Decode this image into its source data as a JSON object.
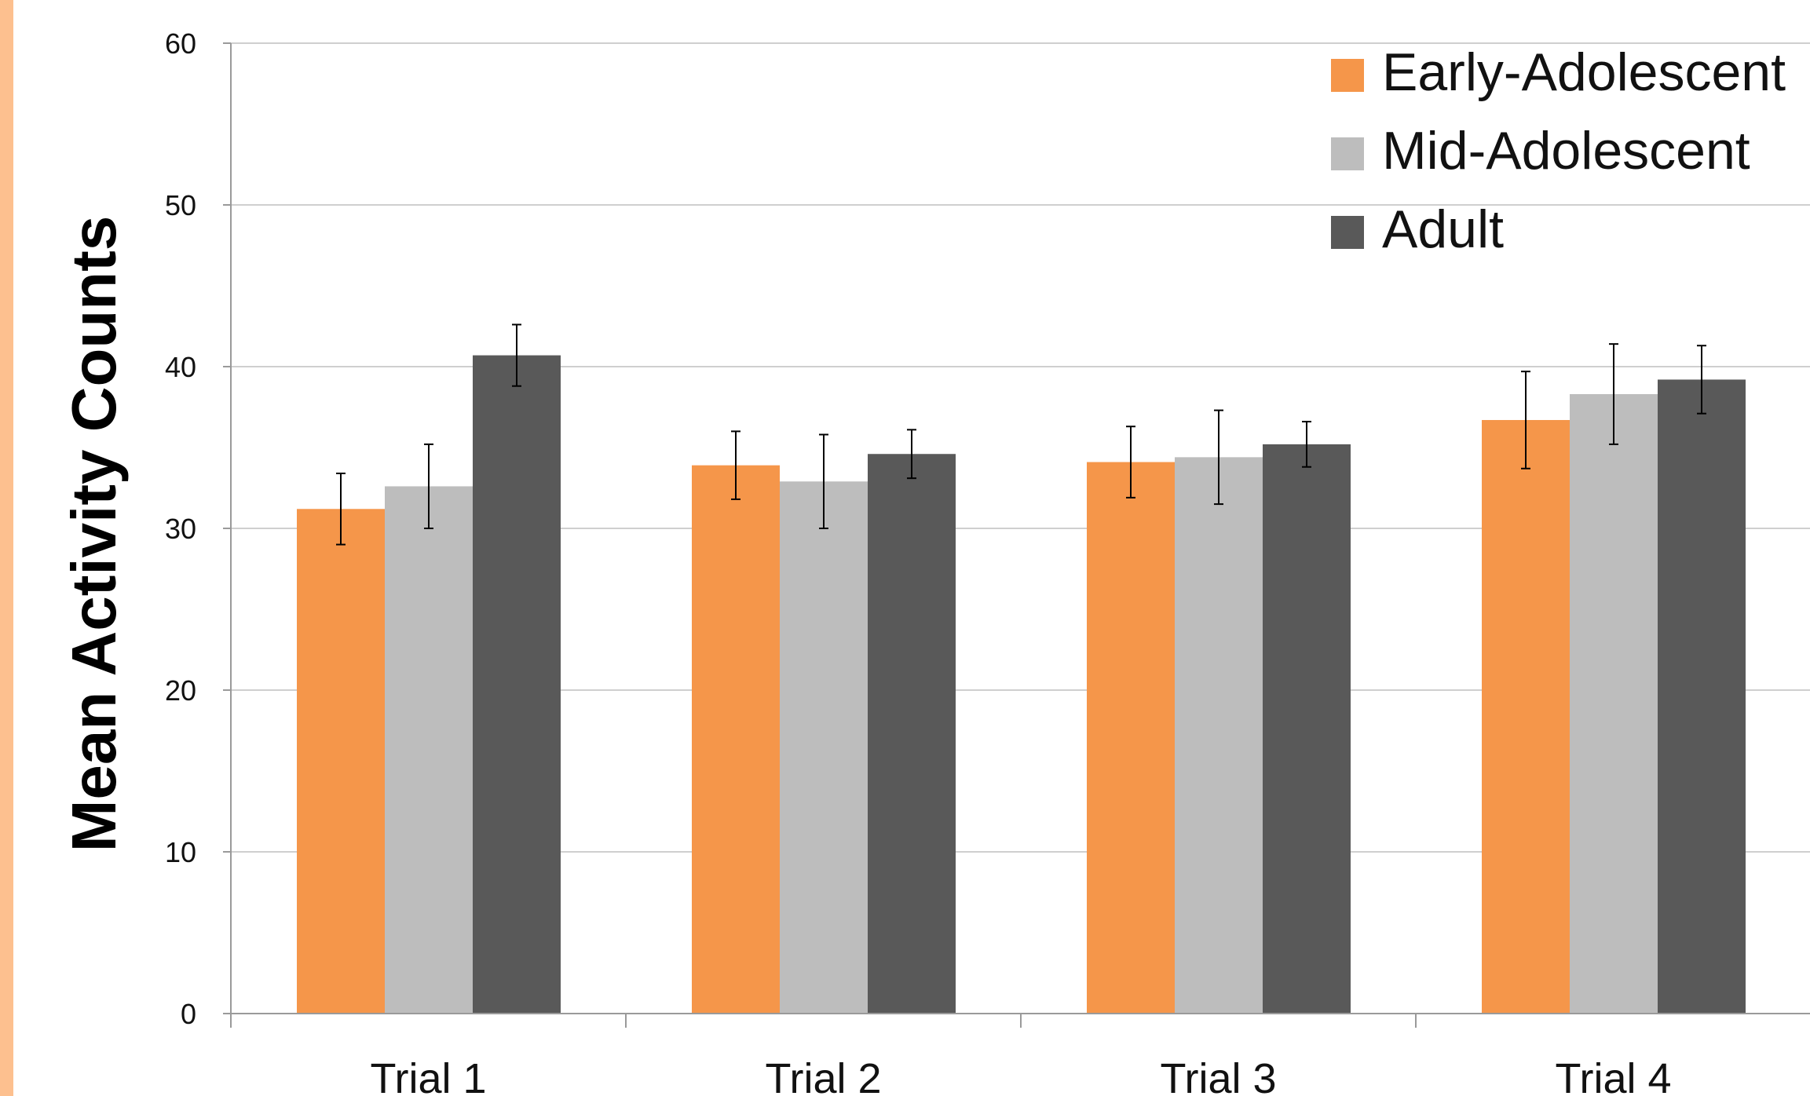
{
  "colors": {
    "left_strip": "#fdc08f",
    "series": [
      "#f5964a",
      "#bdbdbd",
      "#595959"
    ],
    "gridline": "#cfcfcf",
    "axis": "#9a9a9a",
    "error_bar": "#000000"
  },
  "chart_data": {
    "type": "bar",
    "title": "",
    "xlabel": "",
    "ylabel": "Mean Activity Counts",
    "categories": [
      "Trial 1",
      "Trial 2",
      "Trial 3",
      "Trial 4"
    ],
    "ylim": [
      0,
      60
    ],
    "yticks": [
      0,
      10,
      20,
      30,
      40,
      50,
      60
    ],
    "grid": true,
    "legend_position": "top-right",
    "series": [
      {
        "name": "Early-Adolescent",
        "values": [
          31.2,
          33.9,
          34.1,
          36.7
        ],
        "error": [
          2.2,
          2.1,
          2.2,
          3.0
        ]
      },
      {
        "name": "Mid-Adolescent",
        "values": [
          32.6,
          32.9,
          34.4,
          38.3
        ],
        "error": [
          2.6,
          2.9,
          2.9,
          3.1
        ]
      },
      {
        "name": "Adult",
        "values": [
          40.7,
          34.6,
          35.2,
          39.2
        ],
        "error": [
          1.9,
          1.5,
          1.4,
          2.1
        ]
      }
    ]
  }
}
